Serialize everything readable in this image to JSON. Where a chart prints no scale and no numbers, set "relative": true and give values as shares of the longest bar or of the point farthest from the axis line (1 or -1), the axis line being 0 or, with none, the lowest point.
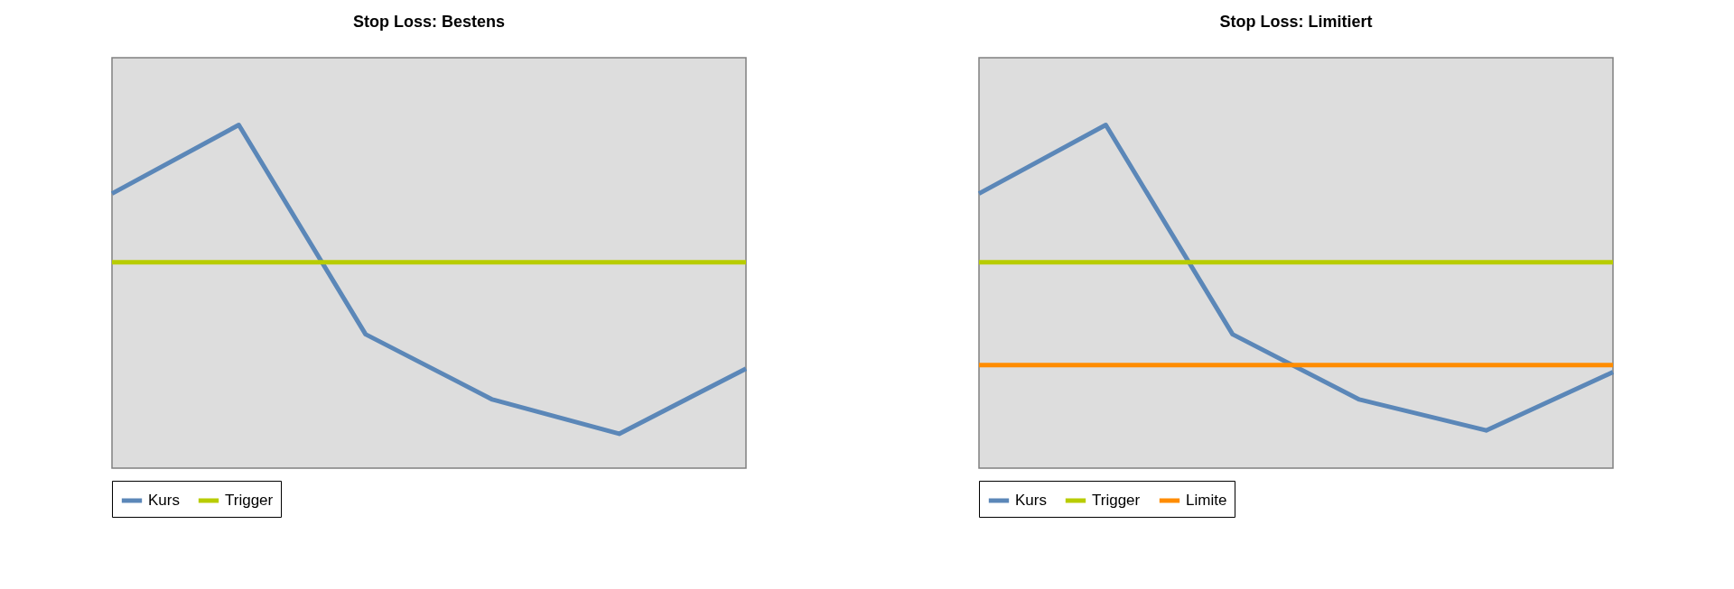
{
  "chart_data": [
    {
      "type": "line",
      "title": "Stop Loss: Bestens",
      "relative": true,
      "categories": [
        null,
        null,
        null,
        null,
        null,
        null
      ],
      "legend": "bottom",
      "grid": false,
      "tick_labels": false,
      "line_style": "solid",
      "marker": "none",
      "series": [
        {
          "name": "Kurs",
          "color": "#5b87b8",
          "values": [
            0.8,
            1,
            0.39,
            0.2,
            0.1,
            0.29
          ]
        },
        {
          "name": "Trigger",
          "color": "#b8cc00",
          "values": [
            0.6,
            0.6,
            0.6,
            0.6,
            0.6,
            0.6
          ]
        }
      ]
    },
    {
      "type": "line",
      "title": "Stop Loss:  Limitiert",
      "relative": true,
      "categories": [
        null,
        null,
        null,
        null,
        null,
        null
      ],
      "legend": "bottom",
      "grid": false,
      "tick_labels": false,
      "line_style": "solid",
      "marker": "none",
      "series": [
        {
          "name": "Kurs",
          "color": "#5b87b8",
          "values": [
            0.8,
            1,
            0.39,
            0.2,
            0.11,
            0.28
          ]
        },
        {
          "name": "Trigger",
          "color": "#b8cc00",
          "values": [
            0.6,
            0.6,
            0.6,
            0.6,
            0.6,
            0.6
          ]
        },
        {
          "name": "Limite",
          "color": "#ff8c00",
          "values": [
            0.3,
            0.3,
            0.3,
            0.3,
            0.3,
            0.3
          ]
        }
      ]
    }
  ]
}
